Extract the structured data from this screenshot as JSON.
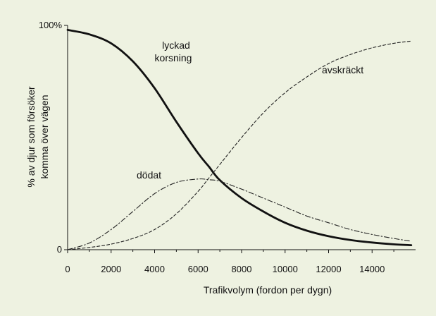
{
  "chart_data": {
    "type": "line",
    "xlabel": "Trafikvolym (fordon per dygn)",
    "ylabel_line1": "% av djur som försöker",
    "ylabel_line2": "komma över vägen",
    "xlim": [
      0,
      16000
    ],
    "ylim": [
      0,
      100
    ],
    "x_ticks": [
      0,
      2000,
      4000,
      6000,
      8000,
      10000,
      12000,
      14000
    ],
    "x_tick_labels": [
      "0",
      "2000",
      "4000",
      "6000",
      "8000",
      "10000",
      "12000",
      "14000"
    ],
    "y_ticks": [
      0,
      100
    ],
    "y_tick_labels": [
      "0",
      "100%"
    ],
    "grid": false,
    "x": [
      0,
      1000,
      2000,
      3000,
      4000,
      5000,
      6000,
      6500,
      7000,
      8000,
      9000,
      10000,
      11000,
      12000,
      13000,
      14000,
      15000,
      15800
    ],
    "series": [
      {
        "name": "lyckad korsning",
        "style": "solid-thick",
        "values": [
          98,
          96,
          92,
          84,
          72,
          57,
          43,
          37,
          31,
          23,
          17,
          12,
          8.5,
          6,
          4.3,
          3.2,
          2.4,
          2
        ]
      },
      {
        "name": "avskräckt",
        "style": "dashed",
        "values": [
          0,
          1,
          2.5,
          5,
          9,
          16,
          26,
          32,
          38,
          50,
          61,
          70,
          77,
          83,
          87,
          90,
          92,
          93
        ]
      },
      {
        "name": "dödat",
        "style": "dash-dot",
        "values": [
          0,
          3,
          9,
          17,
          25,
          30,
          31.5,
          31.2,
          30.5,
          27,
          23,
          19,
          15,
          12,
          9,
          6.8,
          5,
          3.8
        ]
      }
    ],
    "annotations": [
      {
        "line1": "lyckad",
        "line2": "korsning"
      },
      {
        "line1": "avskräckt"
      },
      {
        "line1": "dödat"
      }
    ]
  }
}
